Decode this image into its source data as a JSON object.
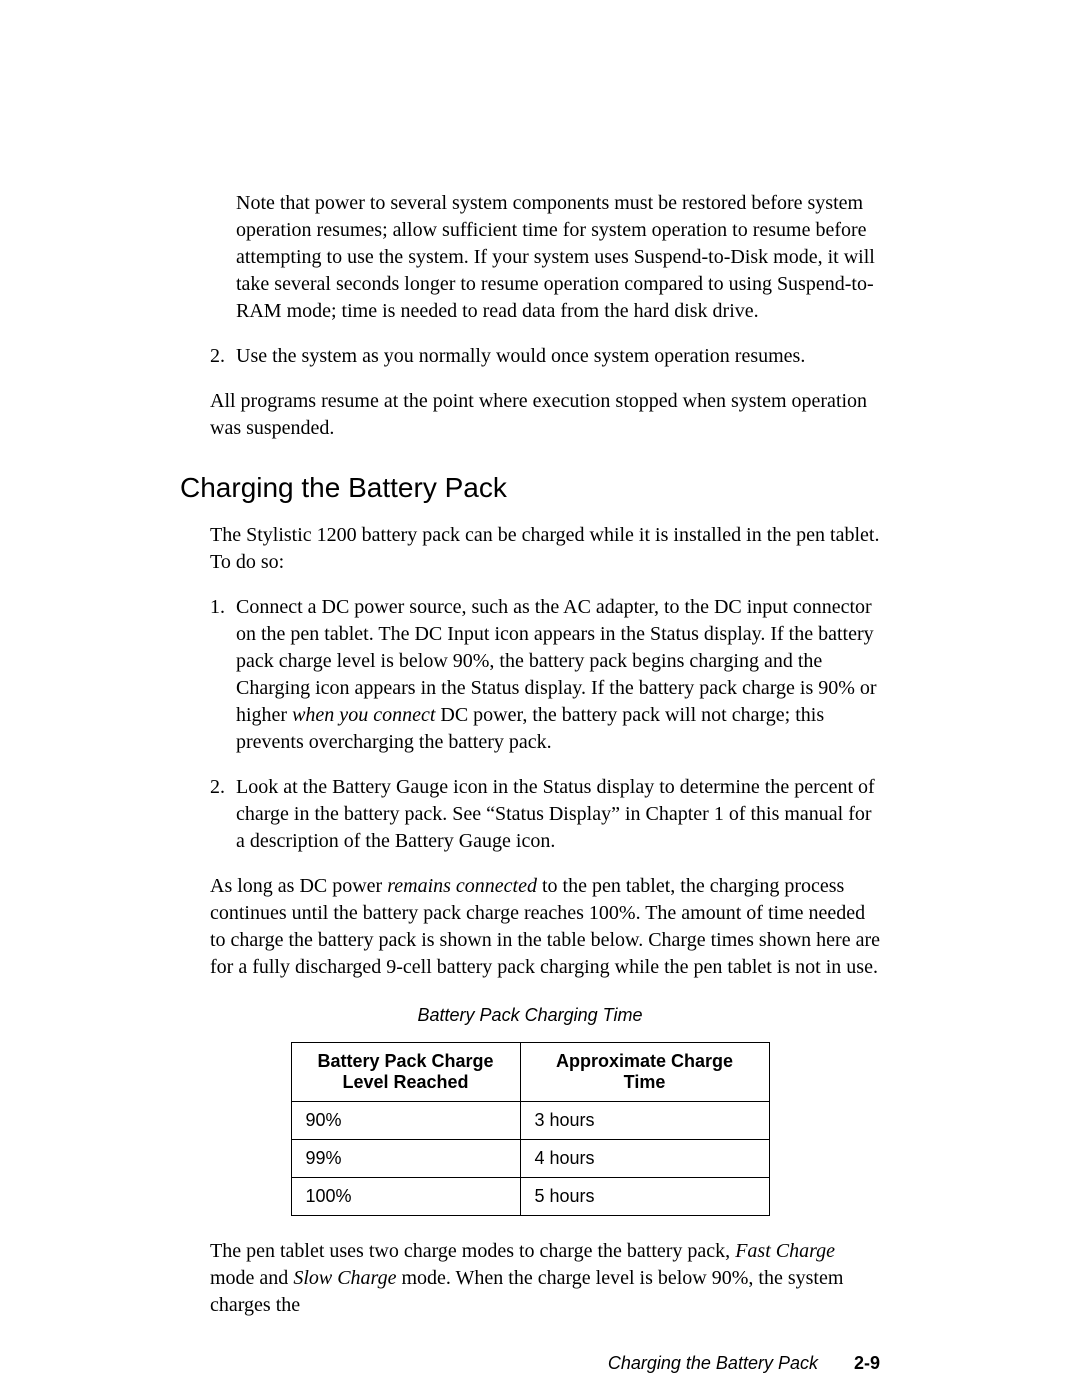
{
  "note_para": "Note that power to several system components must be restored before system operation resumes; allow sufficient time for system operation to resume before attempting to use the system. If your system uses Suspend-to-Disk mode, it will take several seconds longer to resume operation compared to using Suspend-to-RAM mode; time is needed to read data from the hard disk drive.",
  "resume_step": "Use the system as you normally would once system operation resumes.",
  "resume_para": "All programs resume at the point where execution stopped when system operation was suspended.",
  "heading": "Charging the Battery Pack",
  "intro_para": "The Stylistic 1200 battery pack can be charged while it is installed in the pen tablet. To do so:",
  "charge_steps": {
    "s1_a": "Connect a DC power source, such as the AC adapter, to the DC input connector on the pen tablet. The DC Input icon appears in the Status display. If the battery pack charge level is below 90%, the battery pack begins charging and the Charging icon appears in the Status display. If the battery pack charge is 90% or higher ",
    "s1_em": "when you connect",
    "s1_b": " DC power, the battery pack will not charge; this prevents overcharging the battery pack.",
    "s2": "Look at the Battery Gauge icon in the Status display to determine the percent of charge in the battery pack. See “Status Display” in Chapter 1 of this manual for a description of the Battery Gauge icon."
  },
  "connected_para_a": "As long as DC power ",
  "connected_em": "remains connected",
  "connected_para_b": " to the pen tablet, the charging process continues until the battery pack charge reaches 100%. The amount of time needed to charge the battery pack is shown in the table below. Charge times shown here are for a fully discharged 9-cell battery pack charging while the pen tablet is not in use.",
  "table": {
    "title": "Battery Pack Charging Time",
    "columns": [
      "Battery Pack Charge Level Reached",
      "Approximate Charge Time"
    ],
    "rows": [
      [
        "90%",
        "3 hours"
      ],
      [
        "99%",
        "4 hours"
      ],
      [
        "100%",
        "5 hours"
      ]
    ]
  },
  "tail_para_a": "The pen tablet uses two charge modes to charge the battery pack, ",
  "tail_em1": "Fast Charge",
  "tail_mid": " mode and ",
  "tail_em2": "Slow Charge",
  "tail_para_b": " mode. When the charge level is below 90%, the system charges the",
  "footer": {
    "section": "Charging the Battery Pack",
    "page": "2-9"
  }
}
